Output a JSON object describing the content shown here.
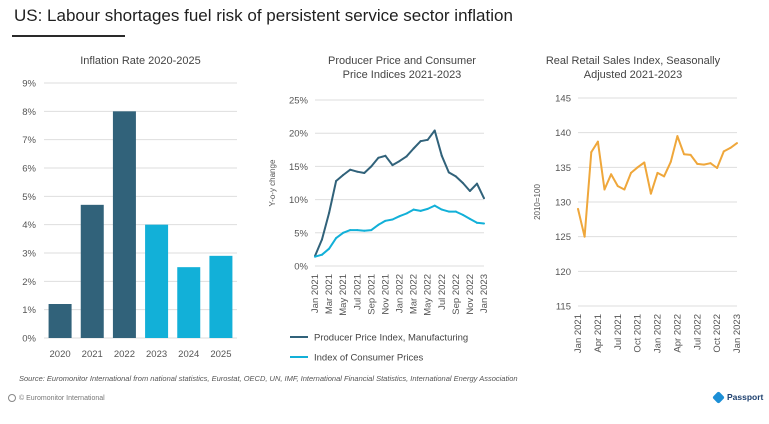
{
  "page": {
    "title": "US: Labour shortages fuel risk of persistent service sector inflation",
    "source": "Source: Euromonitor International from national statistics, Eurostat, OECD, UN, IMF, International Financial Statistics, International Energy Association",
    "copyright": "© Euromonitor International",
    "logo": "Passport",
    "colors": {
      "dark": "#31627a",
      "cyan": "#12b0d8",
      "orange": "#efa73b"
    }
  },
  "chart_data": [
    {
      "type": "bar",
      "title": "Inflation Rate 2020-2025",
      "categories": [
        "2020",
        "2021",
        "2022",
        "2023",
        "2024",
        "2025"
      ],
      "values": [
        1.2,
        4.7,
        8.0,
        4.0,
        2.5,
        2.9
      ],
      "colors": [
        "#31627a",
        "#31627a",
        "#31627a",
        "#12b0d8",
        "#12b0d8",
        "#12b0d8"
      ],
      "ylim": [
        0,
        9
      ],
      "yticks": [
        "0%",
        "1%",
        "2%",
        "3%",
        "4%",
        "5%",
        "6%",
        "7%",
        "8%",
        "9%"
      ],
      "xlabel": "",
      "ylabel": "",
      "grid": true
    },
    {
      "type": "line",
      "title": "Producer Price and Consumer Price Indices 2021-2023",
      "title_lines": [
        "Producer Price and Consumer",
        "Price Indices 2021-2023"
      ],
      "ylabel": "Y-o-y change",
      "ylim": [
        0,
        25
      ],
      "yticks": [
        "0%",
        "5%",
        "10%",
        "15%",
        "20%",
        "25%"
      ],
      "xtick_labels": [
        "Jan 2021",
        "Mar 2021",
        "May 2021",
        "Jul 2021",
        "Sep 2021",
        "Nov 2021",
        "Jan 2022",
        "Mar 2022",
        "May 2022",
        "Jul 2022",
        "Sep 2022",
        "Nov 2022",
        "Jan 2023"
      ],
      "series": [
        {
          "name": "Producer Price Index, Manufacturing",
          "color": "#31627a",
          "values": [
            1.5,
            4.0,
            8.0,
            12.8,
            13.7,
            14.5,
            14.2,
            14.0,
            15.0,
            16.3,
            16.6,
            15.2,
            15.8,
            16.5,
            17.7,
            18.8,
            19.0,
            20.4,
            16.6,
            14.1,
            13.5,
            12.5,
            11.3,
            12.4,
            10.2
          ]
        },
        {
          "name": "Index of Consumer Prices",
          "color": "#12b0d8",
          "values": [
            1.4,
            1.7,
            2.6,
            4.2,
            5.0,
            5.4,
            5.4,
            5.3,
            5.4,
            6.2,
            6.8,
            7.0,
            7.5,
            7.9,
            8.5,
            8.3,
            8.6,
            9.1,
            8.5,
            8.2,
            8.2,
            7.7,
            7.1,
            6.5,
            6.4
          ]
        }
      ],
      "legend_position": "bottom"
    },
    {
      "type": "line",
      "title": "Real Retail Sales Index, Seasonally Adjusted 2021-2023",
      "title_lines": [
        "Real Retail Sales Index, Seasonally",
        "Adjusted 2021-2023"
      ],
      "ylabel": "2010=100",
      "ylim": [
        115,
        145
      ],
      "yticks": [
        "115",
        "120",
        "125",
        "130",
        "135",
        "140",
        "145"
      ],
      "xtick_labels": [
        "Jan 2021",
        "Apr 2021",
        "Jul 2021",
        "Oct 2021",
        "Jan 2022",
        "Apr 2022",
        "Jul 2022",
        "Oct 2022",
        "Jan 2023"
      ],
      "series": [
        {
          "name": "Real Retail Sales Index",
          "color": "#efa73b",
          "values": [
            129.0,
            125.0,
            137.2,
            138.7,
            131.8,
            134.0,
            132.3,
            131.8,
            134.2,
            135.0,
            135.7,
            131.2,
            134.2,
            133.7,
            135.8,
            139.5,
            136.9,
            136.8,
            135.5,
            135.4,
            135.6,
            134.9,
            137.3,
            137.8,
            138.5
          ]
        }
      ]
    }
  ]
}
